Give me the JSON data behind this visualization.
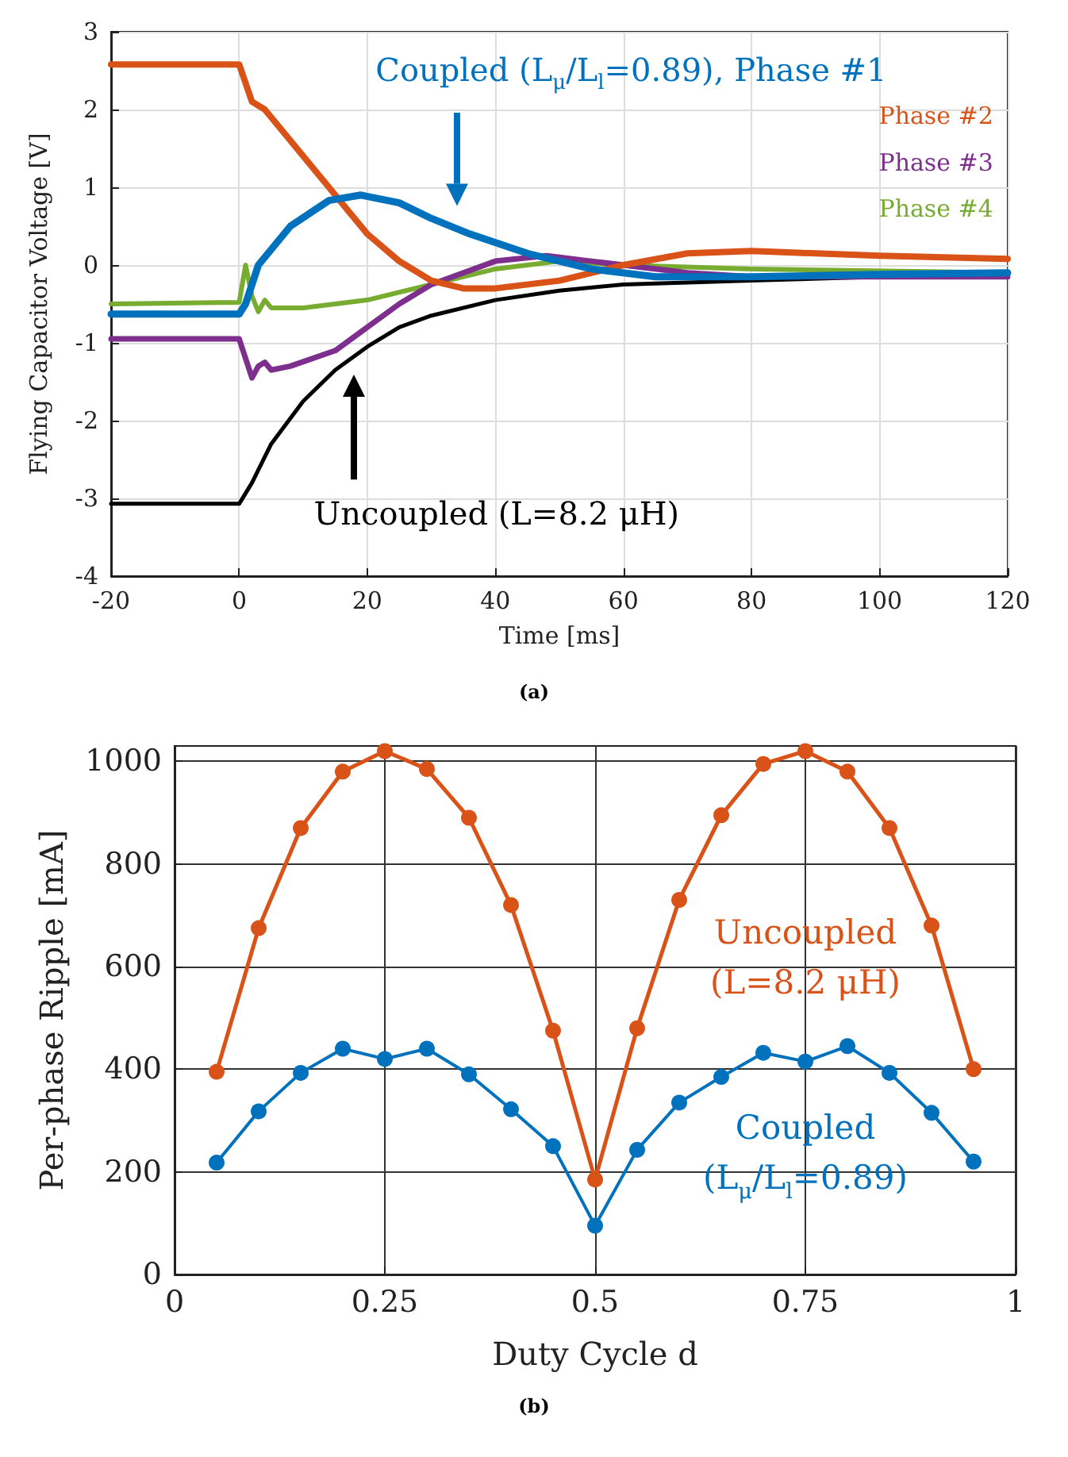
{
  "chart_data": [
    {
      "type": "line",
      "xlabel": "Time [ms]",
      "ylabel": "Flying Capacitor Voltage [V]",
      "xlim": [
        -20,
        120
      ],
      "xticks": [
        -20,
        0,
        20,
        40,
        60,
        80,
        100,
        120
      ],
      "ylim": [
        -4,
        3
      ],
      "yticks": [
        -4,
        -3,
        -2,
        -1,
        0,
        1,
        2,
        3
      ],
      "grid": true,
      "marker": "none",
      "line_style": "solid",
      "annotations": [
        "(a)"
      ],
      "series": [
        {
          "name": "Coupled (L$_{μ}$/L$_{l}$=0.89), Phase #1",
          "color": "#0072bd",
          "x": [
            -20,
            0,
            1,
            3,
            8,
            14,
            19,
            25,
            30,
            36,
            45,
            55,
            65,
            80,
            100,
            120
          ],
          "values": [
            -0.63,
            -0.63,
            -0.5,
            0,
            0.5,
            0.83,
            0.9,
            0.8,
            0.6,
            0.4,
            0.15,
            -0.05,
            -0.15,
            -0.15,
            -0.12,
            -0.1
          ]
        },
        {
          "name": "Phase #2",
          "color": "#d95319",
          "x": [
            -20,
            0,
            2,
            4,
            10,
            15,
            20,
            25,
            30,
            35,
            40,
            50,
            60,
            70,
            80,
            90,
            100,
            120
          ],
          "values": [
            2.58,
            2.58,
            2.1,
            2.0,
            1.4,
            0.9,
            0.4,
            0.05,
            -0.2,
            -0.3,
            -0.3,
            -0.2,
            0.0,
            0.15,
            0.18,
            0.15,
            0.12,
            0.08
          ]
        },
        {
          "name": "Phase #3",
          "color": "#7e2f8e",
          "x": [
            -20,
            0,
            1,
            2,
            3,
            4,
            5,
            8,
            15,
            20,
            25,
            30,
            40,
            48,
            55,
            70,
            80,
            100,
            120
          ],
          "values": [
            -0.95,
            -0.95,
            -1.2,
            -1.45,
            -1.3,
            -1.25,
            -1.35,
            -1.3,
            -1.1,
            -0.8,
            -0.5,
            -0.25,
            0.05,
            0.12,
            0.05,
            -0.1,
            -0.15,
            -0.15,
            -0.15
          ]
        },
        {
          "name": "Phase #4",
          "color": "#77ac30",
          "x": [
            -20,
            0,
            1,
            2,
            3,
            4,
            5,
            10,
            20,
            30,
            40,
            50,
            60,
            80,
            120
          ],
          "values": [
            -0.5,
            -0.48,
            0.0,
            -0.4,
            -0.6,
            -0.45,
            -0.55,
            -0.55,
            -0.45,
            -0.25,
            -0.05,
            0.05,
            0.0,
            -0.05,
            -0.1
          ]
        },
        {
          "name": "Uncoupled (L=8.2 μH)",
          "color": "#000000",
          "x": [
            -20,
            0,
            2,
            5,
            10,
            15,
            20,
            25,
            30,
            40,
            50,
            60,
            80,
            100,
            120
          ],
          "values": [
            -3.07,
            -3.07,
            -2.8,
            -2.3,
            -1.75,
            -1.35,
            -1.05,
            -0.8,
            -0.65,
            -0.45,
            -0.33,
            -0.25,
            -0.2,
            -0.15,
            -0.12
          ]
        }
      ]
    },
    {
      "type": "line",
      "xlabel": "Duty Cycle d",
      "ylabel": "Per-phase Ripple [mA]",
      "xlim": [
        0,
        1
      ],
      "xticks": [
        0,
        0.25,
        0.5,
        0.75,
        1
      ],
      "ylim": [
        0,
        1030
      ],
      "yticks": [
        0,
        200,
        400,
        600,
        800,
        1000
      ],
      "grid": true,
      "marker": "circle",
      "line_style": "solid",
      "annotations": [
        "(b)"
      ],
      "x": [
        0.05,
        0.1,
        0.15,
        0.2,
        0.25,
        0.3,
        0.35,
        0.4,
        0.45,
        0.5,
        0.55,
        0.6,
        0.65,
        0.7,
        0.75,
        0.8,
        0.85,
        0.9,
        0.95
      ],
      "series": [
        {
          "name": "Uncoupled (L=8.2 μH)",
          "color": "#d95319",
          "values": [
            395,
            675,
            870,
            980,
            1020,
            985,
            890,
            720,
            475,
            185,
            480,
            730,
            895,
            995,
            1020,
            980,
            870,
            680,
            400
          ]
        },
        {
          "name": "Coupled (L$_{μ}$/L$_{l}$=0.89)",
          "color": "#0072bd",
          "values": [
            218,
            318,
            393,
            440,
            420,
            440,
            390,
            322,
            250,
            95,
            243,
            335,
            385,
            432,
            415,
            445,
            393,
            315,
            220
          ]
        }
      ]
    }
  ]
}
